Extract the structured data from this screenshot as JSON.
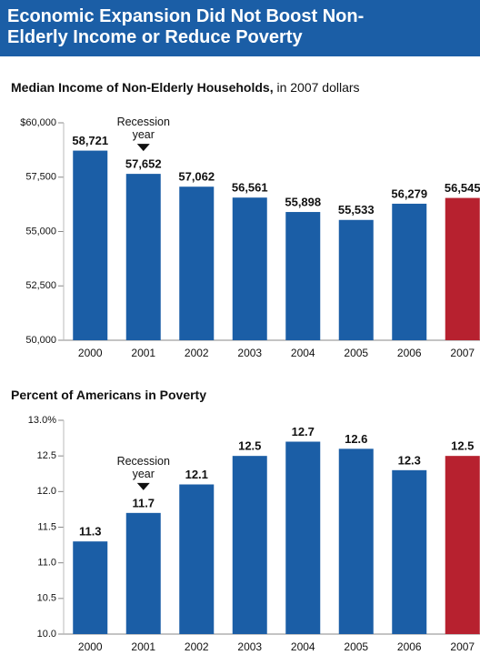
{
  "title": "Economic Expansion Did Not Boost Non-Elderly Income or Reduce Poverty",
  "chart_data": [
    {
      "type": "bar",
      "title": "Median Income of Non-Elderly Households,",
      "subtitle": "in 2007 dollars",
      "categories": [
        "2000",
        "2001",
        "2002",
        "2003",
        "2004",
        "2005",
        "2006",
        "2007"
      ],
      "values": [
        58721,
        57652,
        57062,
        56561,
        55898,
        55533,
        56279,
        56545
      ],
      "value_labels": [
        "58,721",
        "57,652",
        "57,062",
        "56,561",
        "55,898",
        "55,533",
        "56,279",
        "56,545"
      ],
      "colors": [
        "#1b5ea6",
        "#1b5ea6",
        "#1b5ea6",
        "#1b5ea6",
        "#1b5ea6",
        "#1b5ea6",
        "#1b5ea6",
        "#b7212f"
      ],
      "ylim": [
        50000,
        60000
      ],
      "yticks": [
        {
          "value": 50000,
          "label": "50,000"
        },
        {
          "value": 52500,
          "label": "52,500"
        },
        {
          "value": 55000,
          "label": "55,000"
        },
        {
          "value": 57500,
          "label": "57,500"
        },
        {
          "value": 60000,
          "label": "$60,000"
        }
      ],
      "annotation": {
        "text": "Recession year",
        "x": "2001"
      }
    },
    {
      "type": "bar",
      "title": "Percent of Americans in Poverty",
      "categories": [
        "2000",
        "2001",
        "2002",
        "2003",
        "2004",
        "2005",
        "2006",
        "2007"
      ],
      "values": [
        11.3,
        11.7,
        12.1,
        12.5,
        12.7,
        12.6,
        12.3,
        12.5
      ],
      "colors": [
        "#1b5ea6",
        "#1b5ea6",
        "#1b5ea6",
        "#1b5ea6",
        "#1b5ea6",
        "#1b5ea6",
        "#1b5ea6",
        "#b7212f"
      ],
      "ylim": [
        10,
        13
      ],
      "yticks": [
        {
          "value": 10,
          "label": "10.0"
        },
        10.5,
        {
          "value": 11,
          "label": "11.0"
        },
        11.5,
        {
          "value": 12,
          "label": "12.0"
        },
        12.5,
        {
          "value": 13,
          "label": "13.0%"
        }
      ],
      "annotation": {
        "text": "Recession year",
        "x": "2001"
      }
    }
  ]
}
